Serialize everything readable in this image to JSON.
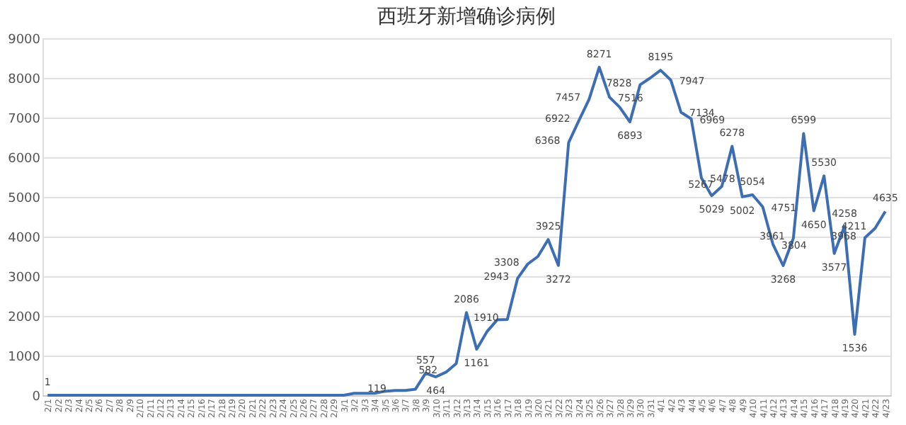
{
  "chart_data": {
    "type": "line",
    "title": "西班牙新增确诊病例",
    "categories": [
      "2/1",
      "2/2",
      "2/3",
      "2/4",
      "2/5",
      "2/6",
      "2/7",
      "2/8",
      "2/9",
      "2/10",
      "2/11",
      "2/12",
      "2/13",
      "2/14",
      "2/15",
      "2/16",
      "2/17",
      "2/18",
      "2/19",
      "2/20",
      "2/21",
      "2/22",
      "2/23",
      "2/24",
      "2/25",
      "2/26",
      "2/27",
      "2/28",
      "2/29",
      "3/1",
      "3/2",
      "3/3",
      "3/4",
      "3/5",
      "3/6",
      "3/7",
      "3/8",
      "3/9",
      "3/10",
      "3/11",
      "3/12",
      "3/13",
      "3/14",
      "3/15",
      "3/16",
      "3/17",
      "3/18",
      "3/19",
      "3/20",
      "3/21",
      "3/22",
      "3/23",
      "3/24",
      "3/25",
      "3/26",
      "3/27",
      "3/28",
      "3/29",
      "3/30",
      "3/31",
      "4/1",
      "4/2",
      "4/3",
      "4/4",
      "4/5",
      "4/6",
      "4/7",
      "4/8",
      "4/9",
      "4/10",
      "4/11",
      "4/12",
      "4/13",
      "4/14",
      "4/15",
      "4/16",
      "4/17",
      "4/18",
      "4/19",
      "4/20",
      "4/21",
      "4/22",
      "4/23"
    ],
    "series": [
      {
        "color": "#3d6eb4",
        "values": [
          1,
          0,
          0,
          0,
          0,
          0,
          0,
          0,
          0,
          0,
          0,
          0,
          0,
          0,
          0,
          0,
          0,
          0,
          0,
          0,
          0,
          0,
          0,
          0,
          0,
          0,
          0,
          0,
          0,
          0,
          50,
          50,
          50,
          100,
          119,
          120,
          150,
          557,
          464,
          582,
          800,
          2086,
          1161,
          1600,
          1900,
          1910,
          2943,
          3308,
          3500,
          3925,
          3272,
          6368,
          6922,
          7457,
          8271,
          7516,
          7260,
          6893,
          7828,
          8000,
          8195,
          7947,
          7134,
          6969,
          5478,
          5029,
          5267,
          6278,
          5002,
          5054,
          4751,
          3804,
          3268,
          3961,
          6599,
          4650,
          5530,
          3577,
          4258,
          1536,
          3968,
          4211,
          4635
        ],
        "value_labels": [
          "1",
          null,
          null,
          null,
          null,
          null,
          null,
          null,
          null,
          null,
          null,
          null,
          null,
          null,
          null,
          null,
          null,
          null,
          null,
          null,
          null,
          null,
          null,
          null,
          null,
          null,
          null,
          null,
          null,
          null,
          null,
          null,
          null,
          null,
          "119",
          null,
          null,
          "557",
          "464",
          "582",
          null,
          "2086",
          "1161",
          null,
          null,
          "1910",
          "2943",
          "3308",
          null,
          "3925",
          "3272",
          "6368",
          "6922",
          "7457",
          "8271",
          "7516",
          null,
          "6893",
          "7828",
          null,
          "8195",
          "7947",
          "7134",
          "6969",
          "5478",
          "5029",
          "5267",
          "6278",
          "5002",
          "5054",
          "4751",
          "3804",
          "3268",
          "3961",
          "6599",
          "4650",
          "5530",
          "3577",
          "4258",
          "1536",
          "3968",
          "4211",
          "4635"
        ]
      }
    ],
    "ylim": [
      0,
      9000
    ],
    "yticks": [
      0,
      1000,
      2000,
      3000,
      4000,
      5000,
      6000,
      7000,
      8000,
      9000
    ],
    "grid": "y",
    "marker": "none",
    "line_style": "solid"
  }
}
